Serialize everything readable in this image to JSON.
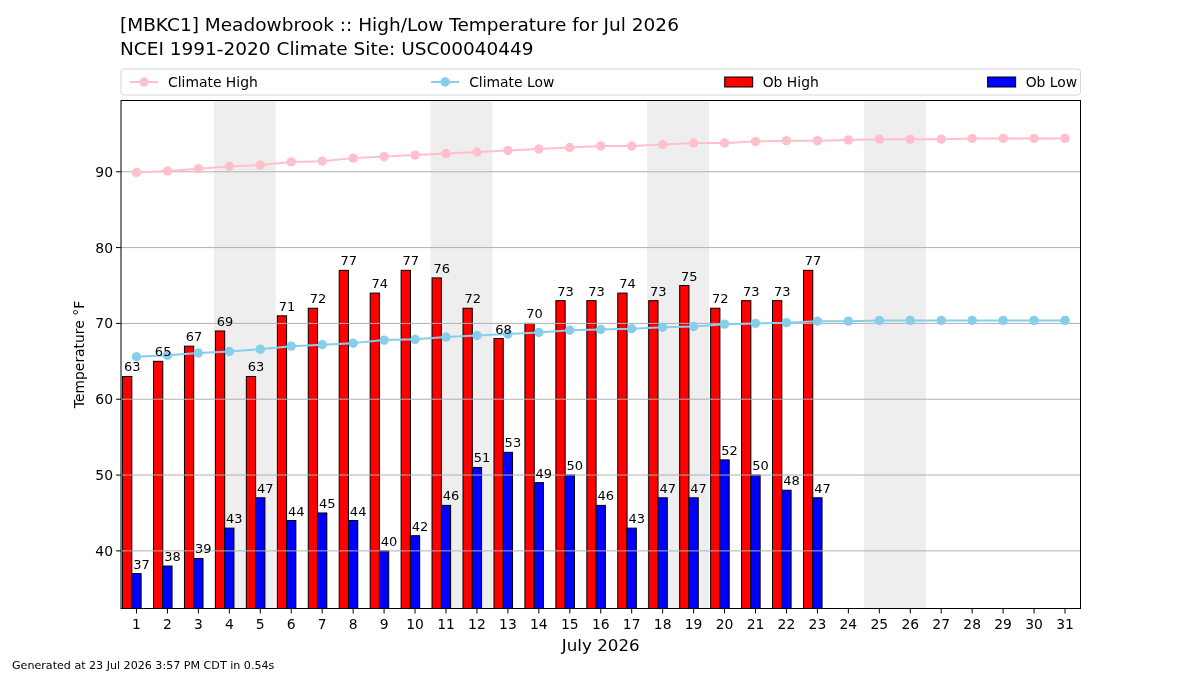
{
  "chart_data": {
    "type": "bar",
    "title": "[MBKC1] Meadowbrook :: High/Low Temperature for Jul 2026",
    "subtitle": "NCEI 1991-2020 Climate Site: USC00040449",
    "xlabel": "July 2026",
    "ylabel": "Temperature °F",
    "x": [
      1,
      2,
      3,
      4,
      5,
      6,
      7,
      8,
      9,
      10,
      11,
      12,
      13,
      14,
      15,
      16,
      17,
      18,
      19,
      20,
      21,
      22,
      23,
      24,
      25,
      26,
      27,
      28,
      29,
      30,
      31
    ],
    "xlim": [
      0.5,
      31.5
    ],
    "xticks": [
      1,
      2,
      3,
      4,
      5,
      6,
      7,
      8,
      9,
      10,
      11,
      12,
      13,
      14,
      15,
      16,
      17,
      18,
      19,
      20,
      21,
      22,
      23,
      24,
      25,
      26,
      27,
      28,
      29,
      30,
      31
    ],
    "ylim": [
      32.4,
      99.4
    ],
    "yticks": [
      40,
      50,
      60,
      70,
      80,
      90
    ],
    "grid": "y",
    "legend": "top",
    "bands": [
      {
        "axis": "x",
        "from": 3.5,
        "to": 5.5,
        "color": "#eeeeee"
      },
      {
        "axis": "x",
        "from": 10.5,
        "to": 12.5,
        "color": "#eeeeee"
      },
      {
        "axis": "x",
        "from": 17.5,
        "to": 19.5,
        "color": "#eeeeee"
      },
      {
        "axis": "x",
        "from": 24.5,
        "to": 26.5,
        "color": "#eeeeee"
      }
    ],
    "annotations": [
      "Generated at 23 Jul 2026 3:57 PM CDT in 0.54s"
    ],
    "series": [
      {
        "name": "Climate High",
        "type": "line",
        "color": "#ffc0cb",
        "marker": "circle",
        "values": [
          89.9,
          90.1,
          90.4,
          90.7,
          90.9,
          91.3,
          91.4,
          91.8,
          92.0,
          92.2,
          92.4,
          92.6,
          92.8,
          93.0,
          93.2,
          93.4,
          93.4,
          93.6,
          93.8,
          93.8,
          94.0,
          94.1,
          94.1,
          94.2,
          94.3,
          94.3,
          94.3,
          94.4,
          94.4,
          94.4,
          94.4
        ]
      },
      {
        "name": "Climate Low",
        "type": "line",
        "color": "#87ceeb",
        "marker": "circle",
        "values": [
          65.6,
          65.8,
          66.1,
          66.3,
          66.6,
          67.0,
          67.2,
          67.4,
          67.8,
          67.9,
          68.2,
          68.4,
          68.6,
          68.8,
          69.1,
          69.2,
          69.3,
          69.5,
          69.6,
          69.9,
          70.0,
          70.1,
          70.3,
          70.3,
          70.4,
          70.4,
          70.4,
          70.4,
          70.4,
          70.4,
          70.4
        ]
      },
      {
        "name": "Ob High",
        "color": "#ff0000",
        "data_labels": true,
        "values": [
          63,
          65,
          67,
          69,
          63,
          71,
          72,
          77,
          74,
          77,
          76,
          72,
          68,
          70,
          73,
          73,
          74,
          73,
          75,
          72,
          73,
          73,
          77,
          null,
          null,
          null,
          null,
          null,
          null,
          null,
          null
        ]
      },
      {
        "name": "Ob Low",
        "color": "#0000ff",
        "data_labels": true,
        "values": [
          37,
          38,
          39,
          43,
          47,
          44,
          45,
          44,
          40,
          42,
          46,
          51,
          53,
          49,
          50,
          46,
          43,
          47,
          47,
          52,
          50,
          48,
          47,
          null,
          null,
          null,
          null,
          null,
          null,
          null,
          null
        ]
      }
    ]
  }
}
